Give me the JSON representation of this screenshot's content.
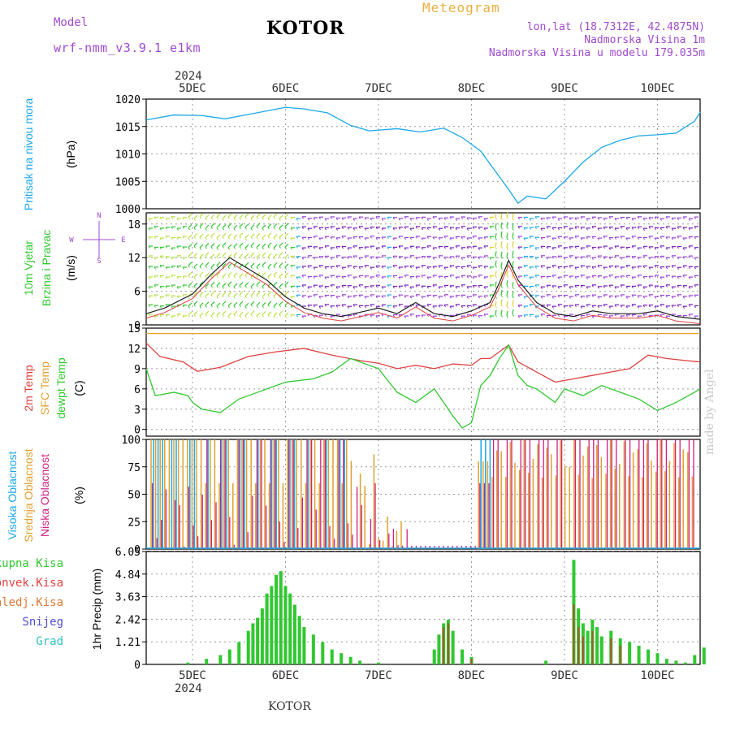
{
  "header": {
    "model_label": "Model",
    "model_value": "wrf-nmm_v3.9.1 e1km",
    "station": "KOTOR",
    "product": "Meteogram",
    "coords": "lon,lat (18.7312E, 42.4875N)",
    "altitude": "Nadmorska Visina 1m",
    "model_altitude": "Nadmorska Visina u modelu 179.035m",
    "year": "2024",
    "footer_station": "KOTOR",
    "watermark": "made by Angel"
  },
  "days": [
    "5DEC",
    "6DEC",
    "7DEC",
    "8DEC",
    "9DEC",
    "10DEC"
  ],
  "colors": {
    "pressure": "#1ca8e8",
    "temp": "#e04040",
    "dew": "#30c830",
    "sfc": "#e0a030",
    "high_cloud": "#1ca8e8",
    "mid_cloud": "#e0a030",
    "low_cloud": "#d02080",
    "precip": "#30c830",
    "conv": "#e04040"
  },
  "chart_data": [
    {
      "type": "line",
      "panel": "pressure",
      "ylabel_lines": [
        "Pritisak na nivou mora",
        "(hPa)"
      ],
      "yticks": [
        "1020",
        "1015",
        "1010",
        "1005",
        "1000"
      ],
      "ylim": [
        1000,
        1020
      ],
      "x_days": [
        -0.5,
        -0.2,
        0.1,
        0.35,
        0.6,
        0.85,
        1.0,
        1.2,
        1.45,
        1.7,
        1.9,
        2.2,
        2.45,
        2.7,
        2.9,
        3.1,
        3.25,
        3.4,
        3.5,
        3.6,
        3.8,
        4.0,
        4.2,
        4.4,
        4.6,
        4.8,
        5.0,
        5.2,
        5.4,
        5.5
      ],
      "values": [
        1016.2,
        1017.1,
        1017.0,
        1016.4,
        1017.2,
        1018.0,
        1018.5,
        1018.2,
        1017.5,
        1015.2,
        1014.2,
        1014.6,
        1014.0,
        1014.7,
        1013.0,
        1010.5,
        1007.0,
        1003.5,
        1001.0,
        1002.3,
        1001.8,
        1005.0,
        1008.5,
        1011.2,
        1012.5,
        1013.3,
        1013.5,
        1013.8,
        1016.0,
        1017.6
      ]
    },
    {
      "type": "wind_barbs",
      "panel": "wind",
      "ylabel_lines": [
        "10m Vjetar",
        "Brzina i Pravac",
        "(m/s)"
      ],
      "yticks": [
        "18",
        "12",
        "6",
        "0"
      ],
      "ylim": [
        0,
        20
      ],
      "compass": [
        "N",
        "E",
        "W",
        "S"
      ],
      "speed_x_days": [
        -0.5,
        -0.3,
        0.0,
        0.2,
        0.4,
        0.6,
        0.8,
        1.0,
        1.2,
        1.4,
        1.6,
        2.0,
        2.2,
        2.4,
        2.6,
        2.8,
        3.0,
        3.2,
        3.3,
        3.4,
        3.5,
        3.7,
        3.9,
        4.1,
        4.3,
        4.5,
        4.8,
        5.0,
        5.2,
        5.5
      ],
      "speed_values": [
        2.0,
        3.0,
        5.5,
        9.0,
        12.0,
        10.0,
        8.0,
        5.0,
        3.0,
        2.0,
        1.5,
        3.0,
        2.0,
        4.0,
        2.0,
        1.5,
        2.5,
        4.0,
        7.5,
        11.5,
        8.0,
        4.0,
        2.0,
        1.5,
        2.5,
        2.0,
        2.0,
        2.5,
        1.5,
        1.0
      ]
    },
    {
      "type": "line",
      "panel": "temperature",
      "ylabel_lines": [
        "2m Temp",
        "SFC Temp",
        "dewpt Temp",
        "(C)"
      ],
      "yticks": [
        "15",
        "12",
        "9",
        "6",
        "3",
        "0"
      ],
      "ylim": [
        -1,
        15
      ],
      "sfc_line": 14.2,
      "series": [
        {
          "name": "2m Temp",
          "x_days": [
            -0.5,
            -0.35,
            -0.1,
            0.05,
            0.3,
            0.6,
            0.9,
            1.2,
            1.5,
            1.8,
            2.0,
            2.2,
            2.4,
            2.6,
            2.8,
            3.0,
            3.1,
            3.2,
            3.3,
            3.4,
            3.5,
            3.7,
            3.9,
            4.1,
            4.3,
            4.5,
            4.7,
            4.9,
            5.1,
            5.3,
            5.5
          ],
          "values": [
            12.8,
            10.8,
            10.0,
            8.6,
            9.2,
            10.8,
            11.5,
            12.0,
            11.0,
            10.2,
            9.8,
            9.0,
            9.5,
            9.0,
            9.7,
            9.5,
            10.5,
            10.5,
            11.5,
            12.5,
            10.0,
            8.5,
            7.0,
            7.5,
            8.0,
            8.5,
            9.0,
            11.0,
            10.5,
            10.2,
            10.0
          ]
        },
        {
          "name": "dewpt Temp",
          "x_days": [
            -0.5,
            -0.4,
            -0.2,
            -0.05,
            0.0,
            0.1,
            0.3,
            0.5,
            0.8,
            1.0,
            1.3,
            1.5,
            1.7,
            1.8,
            2.0,
            2.2,
            2.4,
            2.6,
            2.8,
            2.9,
            3.0,
            3.1,
            3.2,
            3.3,
            3.4,
            3.5,
            3.6,
            3.7,
            3.9,
            4.0,
            4.2,
            4.4,
            4.6,
            4.8,
            5.0,
            5.2,
            5.4,
            5.5
          ],
          "values": [
            9.0,
            5.0,
            5.5,
            5.0,
            4.0,
            3.0,
            2.5,
            4.5,
            6.0,
            7.0,
            7.5,
            8.5,
            10.5,
            10.0,
            9.0,
            5.5,
            4.0,
            6.0,
            2.0,
            0.2,
            1.0,
            6.5,
            8.0,
            10.5,
            12.5,
            8.0,
            6.5,
            6.0,
            4.0,
            6.0,
            5.0,
            6.5,
            5.5,
            4.5,
            2.8,
            4.0,
            5.5,
            6.0
          ]
        }
      ]
    },
    {
      "type": "bar",
      "panel": "clouds",
      "ylabel_lines": [
        "Visoka Oblacnost",
        "Srednja Oblacnost",
        "Niska Oblacnost",
        "(%)"
      ],
      "yticks": [
        "100",
        "75",
        "50",
        "25",
        "0"
      ],
      "ylim": [
        0,
        100
      ],
      "series_names": [
        "Visoka Oblacnost",
        "Srednja Oblacnost",
        "Niska Oblacnost"
      ]
    },
    {
      "type": "bar",
      "panel": "precipitation",
      "legend": [
        "Ukupna Kisa",
        "Konvek.Kisa",
        "Zaledj.Kisa",
        "Snijeg",
        "Grad"
      ],
      "ylabel": "1hr Precip (mm)",
      "yticks": [
        "6.05",
        "4.84",
        "3.63",
        "2.42",
        "1.21",
        "0"
      ],
      "ylim": [
        0,
        6.05
      ],
      "total_x_days": [
        -0.05,
        0.15,
        0.3,
        0.4,
        0.5,
        0.6,
        0.65,
        0.7,
        0.75,
        0.8,
        0.85,
        0.9,
        0.95,
        1.0,
        1.05,
        1.1,
        1.15,
        1.2,
        1.3,
        1.4,
        1.5,
        1.6,
        1.7,
        1.8,
        2.0,
        2.6,
        2.65,
        2.7,
        2.75,
        2.8,
        2.9,
        3.0,
        3.8,
        4.1,
        4.15,
        4.2,
        4.25,
        4.3,
        4.35,
        4.4,
        4.5,
        4.6,
        4.7,
        4.8,
        4.9,
        5.0,
        5.1,
        5.2,
        5.3,
        5.4,
        5.5
      ],
      "total_values": [
        0.1,
        0.3,
        0.5,
        0.8,
        1.2,
        1.8,
        2.2,
        2.5,
        3.0,
        3.8,
        4.2,
        4.8,
        5.0,
        4.2,
        3.8,
        3.2,
        2.6,
        2.0,
        1.6,
        1.2,
        0.8,
        0.6,
        0.4,
        0.2,
        0.1,
        0.8,
        1.6,
        2.2,
        2.4,
        1.8,
        0.8,
        0.4,
        0.2,
        5.6,
        3.0,
        2.2,
        1.8,
        2.4,
        2.0,
        1.5,
        1.8,
        1.4,
        1.2,
        1.0,
        0.8,
        0.6,
        0.3,
        0.2,
        0.1,
        0.5,
        0.9
      ],
      "conv_x_days": [
        2.7,
        2.75,
        3.0,
        4.1,
        4.15,
        4.2,
        4.3,
        4.5,
        4.6
      ],
      "conv_values": [
        2.0,
        2.2,
        0.3,
        3.2,
        2.0,
        1.5,
        1.8,
        1.4,
        1.0
      ]
    }
  ]
}
